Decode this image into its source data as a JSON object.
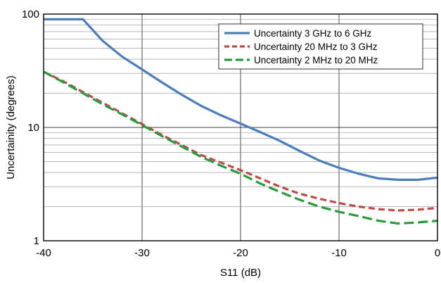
{
  "chart_data": {
    "type": "line",
    "title": "",
    "xlabel": "S11 (dB)",
    "ylabel": "Uncertainity (degrees)",
    "xlim": [
      -40,
      0
    ],
    "ylim": [
      1,
      100
    ],
    "yscale": "log",
    "grid": true,
    "legend_position": "top-right",
    "x_ticks": [
      -40,
      -30,
      -20,
      -10,
      0
    ],
    "x_tick_labels": [
      "-40",
      "-30",
      "-20",
      "-10",
      "0"
    ],
    "y_ticks": [
      1,
      10,
      100
    ],
    "y_tick_labels": [
      "1",
      "10",
      "100"
    ],
    "series": [
      {
        "name": "Uncertainty 3 GHz to 6 GHz",
        "color": "#4a7ebb",
        "style": "solid",
        "points": [
          [
            -40,
            90
          ],
          [
            -36,
            90
          ],
          [
            -34,
            58
          ],
          [
            -32,
            42
          ],
          [
            -30,
            32.5
          ],
          [
            -28,
            25
          ],
          [
            -26,
            19.5
          ],
          [
            -24,
            15.5
          ],
          [
            -22,
            12.8
          ],
          [
            -20,
            10.8
          ],
          [
            -18,
            9.1
          ],
          [
            -16,
            7.6
          ],
          [
            -14,
            6.2
          ],
          [
            -12,
            5.1
          ],
          [
            -10,
            4.4
          ],
          [
            -8,
            3.9
          ],
          [
            -6,
            3.55
          ],
          [
            -4,
            3.45
          ],
          [
            -2,
            3.45
          ],
          [
            0,
            3.6
          ]
        ]
      },
      {
        "name": "Uncertainty 20 MHz to  3 GHz",
        "color": "#be4b48",
        "style": "dashed",
        "points": [
          [
            -40,
            31
          ],
          [
            -38,
            25.5
          ],
          [
            -36,
            20.5
          ],
          [
            -34,
            16.5
          ],
          [
            -32,
            13.3
          ],
          [
            -30,
            10.7
          ],
          [
            -28,
            8.6
          ],
          [
            -26,
            7
          ],
          [
            -24,
            5.7
          ],
          [
            -22,
            4.9
          ],
          [
            -20,
            4.2
          ],
          [
            -18,
            3.55
          ],
          [
            -16,
            3.0
          ],
          [
            -14,
            2.6
          ],
          [
            -12,
            2.35
          ],
          [
            -10,
            2.15
          ],
          [
            -8,
            2.0
          ],
          [
            -6,
            1.9
          ],
          [
            -4,
            1.85
          ],
          [
            -2,
            1.88
          ],
          [
            0,
            1.95
          ]
        ]
      },
      {
        "name": "Uncertainty 2 MHz to 20 MHz",
        "color": "#2a9a3e",
        "style": "dashed",
        "points": [
          [
            -40,
            31
          ],
          [
            -38,
            25
          ],
          [
            -36,
            20
          ],
          [
            -34,
            16
          ],
          [
            -32,
            13
          ],
          [
            -30,
            10.5
          ],
          [
            -28,
            8.4
          ],
          [
            -26,
            6.8
          ],
          [
            -24,
            5.5
          ],
          [
            -22,
            4.6
          ],
          [
            -20,
            3.9
          ],
          [
            -18,
            3.2
          ],
          [
            -16,
            2.7
          ],
          [
            -14,
            2.3
          ],
          [
            -12,
            2.0
          ],
          [
            -10,
            1.8
          ],
          [
            -8,
            1.65
          ],
          [
            -6,
            1.5
          ],
          [
            -4,
            1.42
          ],
          [
            -2,
            1.45
          ],
          [
            0,
            1.5
          ]
        ]
      }
    ]
  }
}
